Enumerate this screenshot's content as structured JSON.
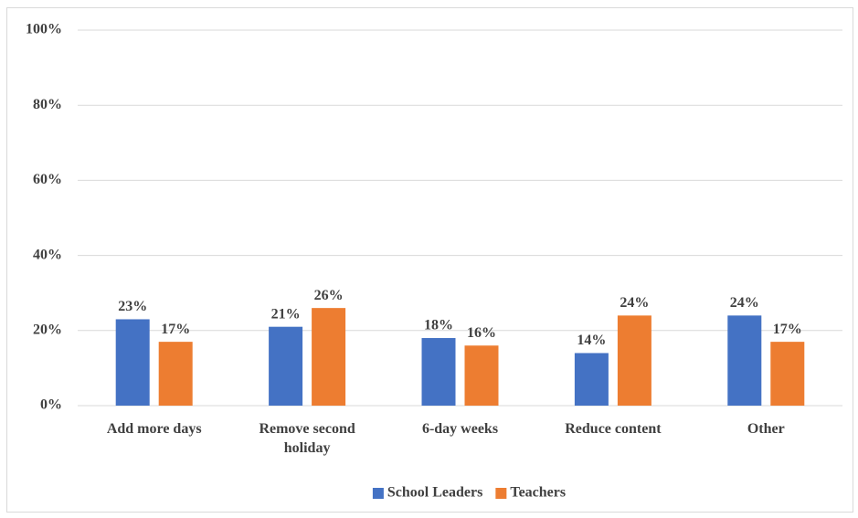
{
  "chart_data": {
    "type": "bar",
    "categories": [
      "Add more days",
      "Remove second holiday",
      "6-day weeks",
      "Reduce content",
      "Other"
    ],
    "series": [
      {
        "name": "School Leaders",
        "color": "#4472c4",
        "values": [
          23,
          21,
          18,
          14,
          24
        ],
        "value_labels": [
          "23%",
          "21%",
          "18%",
          "14%",
          "24%"
        ]
      },
      {
        "name": "Teachers",
        "color": "#ed7d31",
        "values": [
          17,
          26,
          16,
          24,
          17
        ],
        "value_labels": [
          "17%",
          "26%",
          "16%",
          "24%",
          "17%"
        ]
      }
    ],
    "ylim": [
      0,
      100
    ],
    "yticks": [
      {
        "value": 0,
        "label": "0%"
      },
      {
        "value": 20,
        "label": "20%"
      },
      {
        "value": 40,
        "label": "40%"
      },
      {
        "value": 60,
        "label": "60%"
      },
      {
        "value": 80,
        "label": "80%"
      },
      {
        "value": 100,
        "label": "100%"
      }
    ],
    "grid": true,
    "legend": "bottom"
  }
}
